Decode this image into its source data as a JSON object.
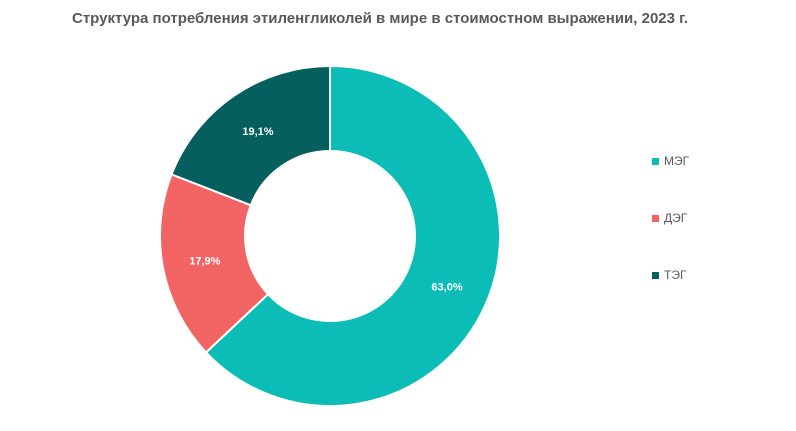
{
  "chart_data": {
    "type": "pie",
    "title": "Структура потребления этиленгликолей в мире в стоимостном выражении, 2023 г.",
    "donut": true,
    "legend_position": "right",
    "series": [
      {
        "name": "МЭГ",
        "value": 63.0,
        "label": "63,0%",
        "color": "#0BBDB6"
      },
      {
        "name": "ДЭГ",
        "value": 17.9,
        "label": "17,9%",
        "color": "#F26463"
      },
      {
        "name": "ТЭГ",
        "value": 19.1,
        "label": "19,1%",
        "color": "#045F5E"
      }
    ]
  }
}
